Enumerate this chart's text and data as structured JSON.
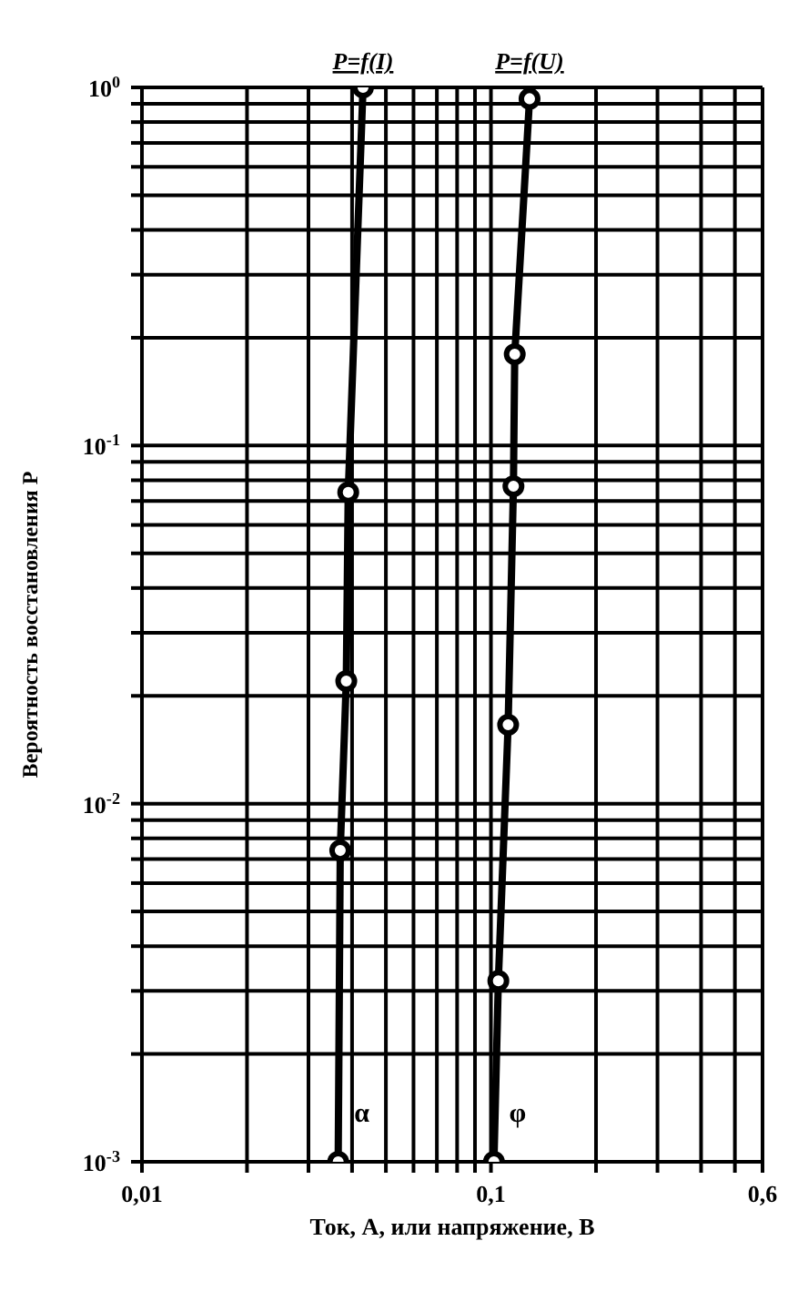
{
  "chart_data": {
    "type": "line",
    "xlabel": "Ток, А, или напряжение, В",
    "ylabel": "Вероятность восстановления P",
    "log": "xy",
    "xlim": [
      0.01,
      0.6
    ],
    "ylim": [
      0.001,
      1
    ],
    "xticks": [
      {
        "value": 0.01,
        "label": "0,01"
      },
      {
        "value": 0.02,
        "label": null
      },
      {
        "value": 0.03,
        "label": null
      },
      {
        "value": 0.04,
        "label": null
      },
      {
        "value": 0.05,
        "label": null
      },
      {
        "value": 0.06,
        "label": null
      },
      {
        "value": 0.07,
        "label": null
      },
      {
        "value": 0.08,
        "label": null
      },
      {
        "value": 0.09,
        "label": null
      },
      {
        "value": 0.1,
        "label": "0,1"
      },
      {
        "value": 0.2,
        "label": null
      },
      {
        "value": 0.3,
        "label": null
      },
      {
        "value": 0.4,
        "label": null
      },
      {
        "value": 0.5,
        "label": null
      },
      {
        "value": 0.6,
        "label": "0,6"
      }
    ],
    "yticks": [
      {
        "value": 0.001,
        "label": "10$^{-3}$"
      },
      {
        "value": 0.002,
        "label": null
      },
      {
        "value": 0.003,
        "label": null
      },
      {
        "value": 0.004,
        "label": null
      },
      {
        "value": 0.005,
        "label": null
      },
      {
        "value": 0.006,
        "label": null
      },
      {
        "value": 0.007,
        "label": null
      },
      {
        "value": 0.008,
        "label": null
      },
      {
        "value": 0.009,
        "label": null
      },
      {
        "value": 0.01,
        "label": "10$^{-2}$"
      },
      {
        "value": 0.02,
        "label": null
      },
      {
        "value": 0.03,
        "label": null
      },
      {
        "value": 0.04,
        "label": null
      },
      {
        "value": 0.05,
        "label": null
      },
      {
        "value": 0.06,
        "label": null
      },
      {
        "value": 0.07,
        "label": null
      },
      {
        "value": 0.08,
        "label": null
      },
      {
        "value": 0.09,
        "label": null
      },
      {
        "value": 0.1,
        "label": "10$^{-1}$"
      },
      {
        "value": 0.2,
        "label": null
      },
      {
        "value": 0.3,
        "label": null
      },
      {
        "value": 0.4,
        "label": null
      },
      {
        "value": 0.5,
        "label": null
      },
      {
        "value": 0.6,
        "label": null
      },
      {
        "value": 0.7,
        "label": null
      },
      {
        "value": 0.8,
        "label": null
      },
      {
        "value": 0.9,
        "label": null
      },
      {
        "value": 1,
        "label": "10$^{0}$"
      }
    ],
    "grid": true,
    "legend": false,
    "marker": "circle",
    "line_style": "solid",
    "series": [
      {
        "name": "P=f(I)",
        "color": "#000000",
        "x": [
          0.043,
          0.039,
          0.0385,
          0.037,
          0.0365
        ],
        "values": [
          1,
          0.074,
          0.022,
          0.0074,
          0.001
        ]
      },
      {
        "name": "P=f(U)",
        "color": "#000000",
        "x": [
          0.129,
          0.117,
          0.116,
          0.112,
          0.105,
          0.102
        ],
        "values": [
          0.93,
          0.18,
          0.077,
          0.0166,
          0.0032,
          0.001
        ]
      }
    ],
    "annotations": [
      "α",
      "φ"
    ]
  }
}
